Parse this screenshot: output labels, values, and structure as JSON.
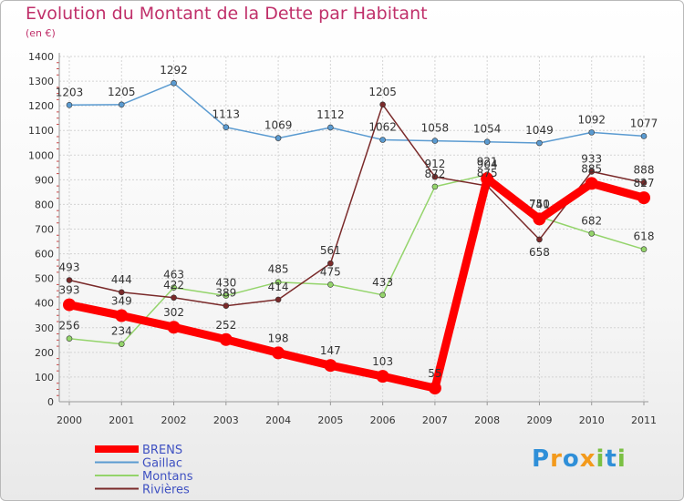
{
  "header": {
    "title": "Evolution du Montant de la Dette par Habitant",
    "subtitle": "(en €)"
  },
  "logo": {
    "letters": [
      "P",
      "r",
      "o",
      "x",
      "i",
      "t",
      "i"
    ],
    "colors": [
      "#2f8fd8",
      "#f39a1c",
      "#2f8fd8",
      "#f39a1c",
      "#7ac043",
      "#2f8fd8",
      "#7ac043"
    ]
  },
  "chart_data": {
    "type": "line",
    "categories": [
      "2000",
      "2001",
      "2002",
      "2003",
      "2004",
      "2005",
      "2006",
      "2007",
      "2008",
      "2009",
      "2010",
      "2011"
    ],
    "ylim": [
      0,
      1400
    ],
    "yticks": [
      "0",
      "100",
      "200",
      "300",
      "400",
      "500",
      "600",
      "700",
      "800",
      "900",
      "1000",
      "1100",
      "1200",
      "1300",
      "1400"
    ],
    "grid": true,
    "legend_position": "bottom-left",
    "series": [
      {
        "name": "Gaillac",
        "color": "#5b9bd1",
        "width": 1.5,
        "values": [
          1203,
          1205,
          1292,
          1113,
          1069,
          1112,
          1062,
          1058,
          1054,
          1049,
          1092,
          1077
        ],
        "labels": [
          "1203",
          "1205",
          "1292",
          "1113",
          "1069",
          "1112",
          "1062",
          "1058",
          "1054",
          "1049",
          "1092",
          "1077"
        ]
      },
      {
        "name": "Montans",
        "color": "#94d46b",
        "width": 1.5,
        "values": [
          256,
          234,
          463,
          430,
          485,
          475,
          433,
          872,
          921,
          750,
          682,
          618
        ],
        "labels": [
          "256",
          "234",
          "463",
          "430",
          "485",
          "475",
          "433",
          "872",
          "921",
          "750",
          "682",
          "618"
        ]
      },
      {
        "name": "Rivières",
        "color": "#7a2a2a",
        "width": 1.5,
        "values": [
          493,
          444,
          422,
          389,
          414,
          561,
          1205,
          912,
          875,
          658,
          933,
          888
        ],
        "labels": [
          "493",
          "444",
          "422",
          "389",
          "414",
          "561",
          "1205",
          "912",
          "875",
          "658",
          "933",
          "888"
        ]
      },
      {
        "name": "BRENS",
        "color": "#ff0000",
        "width": 9,
        "values": [
          393,
          349,
          302,
          252,
          198,
          147,
          103,
          55,
          904,
          741,
          885,
          827
        ],
        "labels": [
          "393",
          "349",
          "302",
          "252",
          "198",
          "147",
          "103",
          "55",
          "904",
          "741",
          "885",
          "827"
        ]
      }
    ],
    "legend_order": [
      "BRENS",
      "Gaillac",
      "Montans",
      "Rivières"
    ]
  }
}
